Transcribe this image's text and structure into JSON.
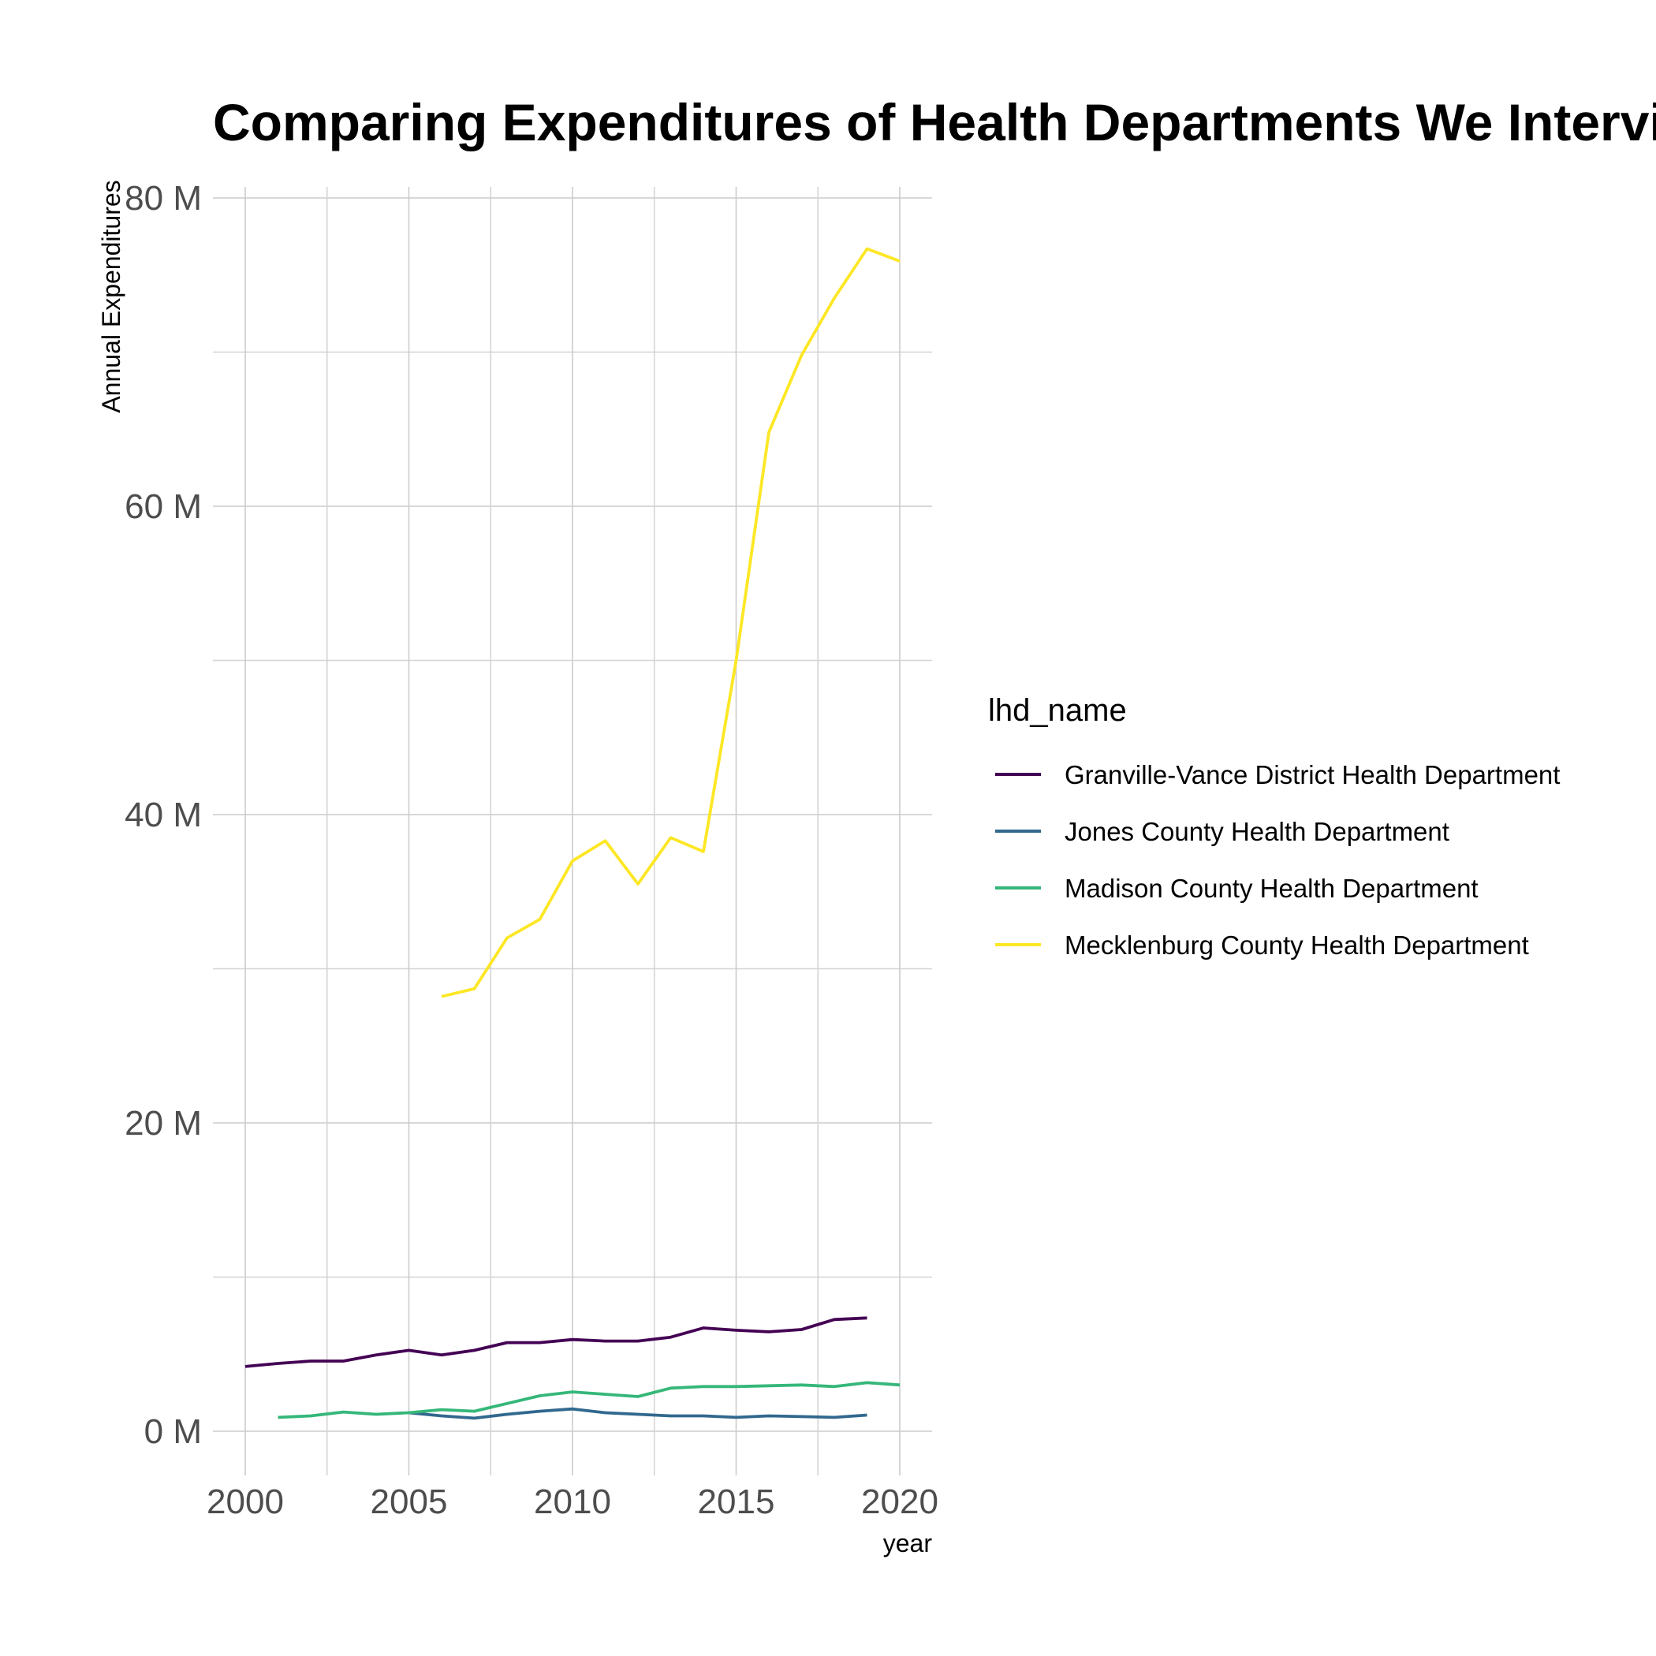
{
  "chart_data": {
    "type": "line",
    "title": "Comparing Expenditures of Health Departments We Interviewe",
    "xlabel": "year",
    "ylabel": "Annual Expenditures",
    "xlim": [
      2000,
      2020
    ],
    "ylim": [
      0,
      80000000
    ],
    "x_ticks": [
      2000,
      2005,
      2010,
      2015,
      2020
    ],
    "y_ticks": [
      0,
      20000000,
      40000000,
      60000000,
      80000000
    ],
    "y_tick_labels": [
      "0 M",
      "20 M",
      "40 M",
      "60 M",
      "80 M"
    ],
    "grid": true,
    "legend": {
      "title": "lhd_name",
      "position": "right"
    },
    "series": [
      {
        "name": "Granville-Vance District Health Department",
        "color": "#440154",
        "x": [
          2000,
          2001,
          2002,
          2003,
          2004,
          2005,
          2006,
          2007,
          2008,
          2009,
          2010,
          2011,
          2012,
          2013,
          2014,
          2015,
          2016,
          2017,
          2018,
          2019
        ],
        "values": [
          4200000,
          4400000,
          4550000,
          4550000,
          4950000,
          5250000,
          4950000,
          5250000,
          5750000,
          5750000,
          5950000,
          5850000,
          5850000,
          6100000,
          6700000,
          6550000,
          6450000,
          6600000,
          7250000,
          7350000
        ]
      },
      {
        "name": "Jones County Health Department",
        "color": "#31688e",
        "x": [
          2005,
          2006,
          2007,
          2008,
          2009,
          2010,
          2011,
          2012,
          2013,
          2014,
          2015,
          2016,
          2017,
          2018,
          2019
        ],
        "values": [
          1200000,
          1000000,
          850000,
          1100000,
          1300000,
          1450000,
          1200000,
          1100000,
          1000000,
          1000000,
          900000,
          1000000,
          950000,
          900000,
          1050000
        ]
      },
      {
        "name": "Madison County Health Department",
        "color": "#35b779",
        "x": [
          2001,
          2002,
          2003,
          2004,
          2005,
          2006,
          2007,
          2008,
          2009,
          2010,
          2011,
          2012,
          2013,
          2014,
          2015,
          2016,
          2017,
          2018,
          2019,
          2020
        ],
        "values": [
          900000,
          1000000,
          1250000,
          1100000,
          1200000,
          1400000,
          1300000,
          1800000,
          2300000,
          2550000,
          2400000,
          2250000,
          2800000,
          2900000,
          2900000,
          2950000,
          3000000,
          2900000,
          3150000,
          3000000
        ]
      },
      {
        "name": "Mecklenburg County Health Department",
        "color": "#fde725",
        "x": [
          2006,
          2007,
          2008,
          2009,
          2010,
          2011,
          2012,
          2013,
          2014,
          2015,
          2016,
          2017,
          2018,
          2019,
          2020
        ],
        "values": [
          28200000,
          28700000,
          32000000,
          33200000,
          37000000,
          38300000,
          35500000,
          38500000,
          37600000,
          50000000,
          64800000,
          69800000,
          73500000,
          76700000,
          75900000
        ]
      }
    ]
  }
}
